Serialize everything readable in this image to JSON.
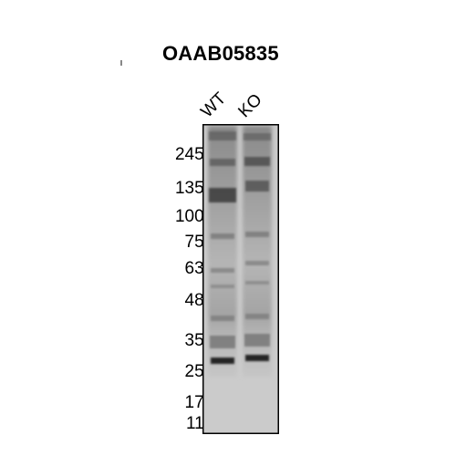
{
  "title": "OAAB05835",
  "lanes": [
    "WT",
    "KO"
  ],
  "markers": [
    {
      "label": "245-",
      "kda": 245
    },
    {
      "label": "135-",
      "kda": 135
    },
    {
      "label": "100-",
      "kda": 100
    },
    {
      "label": "75-",
      "kda": 75
    },
    {
      "label": "63-",
      "kda": 63
    },
    {
      "label": "48-",
      "kda": 48
    },
    {
      "label": "35-",
      "kda": 35
    },
    {
      "label": "25-",
      "kda": 25
    },
    {
      "label": "17-",
      "kda": 17
    },
    {
      "label": "11-",
      "kda": 11
    }
  ],
  "colors": {
    "membrane": "#c9c9c9",
    "band": "#1a1a1a",
    "frame": "#000000"
  }
}
